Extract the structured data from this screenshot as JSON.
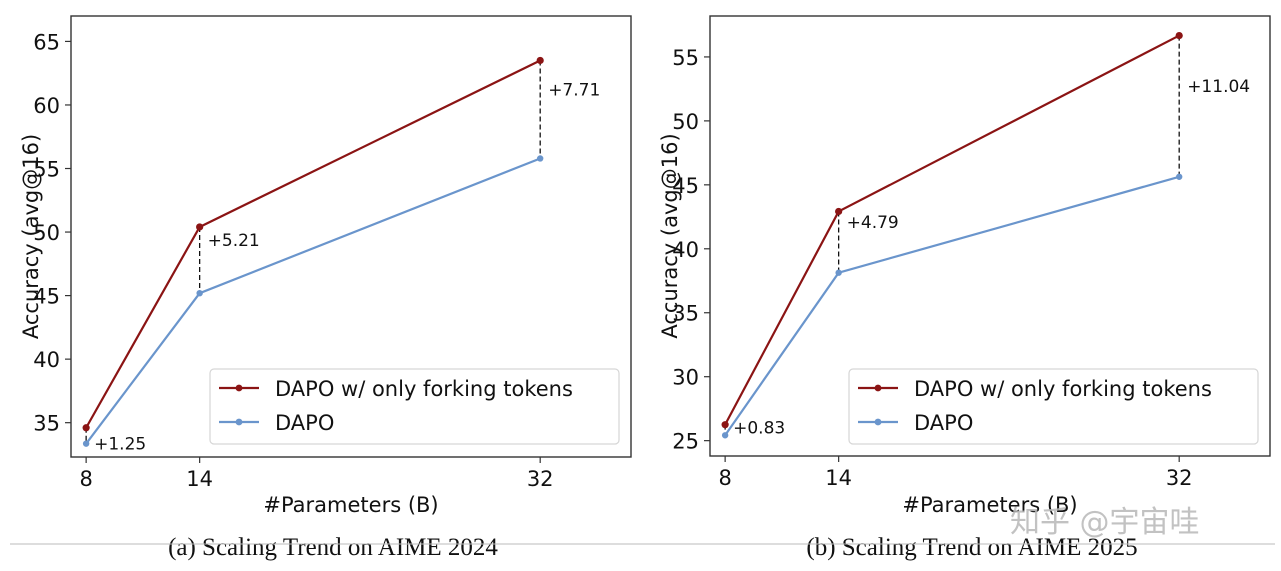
{
  "colors": {
    "forking": "#8b1414",
    "dapo": "#6a95cc",
    "axis": "#333333",
    "gap_line": "#111111",
    "legend_border": "#d6d6d6",
    "separator": "#bbbbbb",
    "watermark": "#b8b8b8"
  },
  "watermark": "知乎 @宇宙哇",
  "chart_data": [
    {
      "type": "line",
      "title": "(a) Scaling Trend on AIME 2024",
      "xlabel": "#Parameters (B)",
      "ylabel": "Accuracy (avg@16)",
      "x": [
        8,
        14,
        32
      ],
      "x_ticks": [
        "8",
        "14",
        "32"
      ],
      "y_ticks": [
        "35",
        "40",
        "45",
        "50",
        "55",
        "60",
        "65"
      ],
      "ylim": [
        32.3,
        67.0
      ],
      "xlim": [
        7.2,
        36.8
      ],
      "grid": false,
      "legend_position": "lower right",
      "series": [
        {
          "name": "DAPO w/ only forking tokens",
          "color": "#8b1414",
          "values": [
            34.6,
            50.4,
            63.5
          ]
        },
        {
          "name": "DAPO",
          "color": "#6a95cc",
          "values": [
            33.35,
            45.19,
            55.79
          ]
        }
      ],
      "annotations": [
        "+1.25",
        "+5.21",
        "+7.71"
      ]
    },
    {
      "type": "line",
      "title": "(b) Scaling Trend on AIME 2025",
      "xlabel": "#Parameters (B)",
      "ylabel": "Accuracy (avg@16)",
      "x": [
        8,
        14,
        32
      ],
      "x_ticks": [
        "8",
        "14",
        "32"
      ],
      "y_ticks": [
        "25",
        "30",
        "35",
        "40",
        "45",
        "50",
        "55"
      ],
      "ylim": [
        23.8,
        58.2
      ],
      "xlim": [
        7.2,
        36.8
      ],
      "grid": false,
      "legend_position": "lower right",
      "series": [
        {
          "name": "DAPO w/ only forking tokens",
          "color": "#8b1414",
          "values": [
            26.25,
            42.92,
            56.67
          ]
        },
        {
          "name": "DAPO",
          "color": "#6a95cc",
          "values": [
            25.42,
            38.13,
            45.63
          ]
        }
      ],
      "annotations": [
        "+0.83",
        "+4.79",
        "+11.04"
      ]
    }
  ]
}
